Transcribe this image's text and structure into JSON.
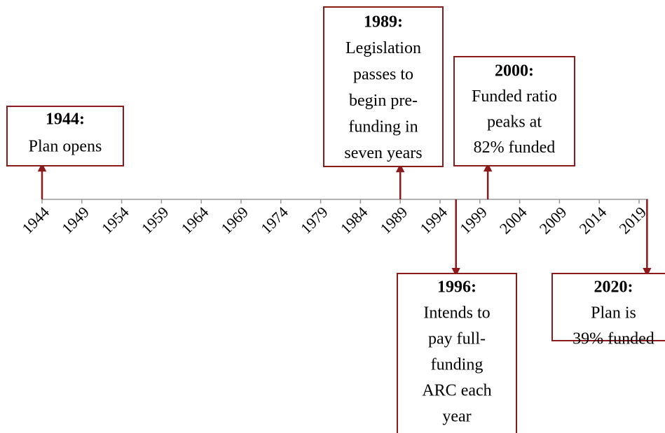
{
  "timeline": {
    "ticks": [
      1944,
      1949,
      1954,
      1959,
      1964,
      1969,
      1974,
      1979,
      1984,
      1989,
      1994,
      1999,
      2004,
      2009,
      2014,
      2019
    ],
    "events": [
      {
        "year": 1944,
        "label": "1944:",
        "lines": [
          "Plan opens"
        ]
      },
      {
        "year": 1989,
        "label": "1989:",
        "lines": [
          "Legislation",
          "passes to",
          "begin pre-",
          "funding in",
          "seven years"
        ]
      },
      {
        "year": 2000,
        "label": "2000:",
        "lines": [
          "Funded ratio",
          "peaks at",
          "82% funded"
        ]
      },
      {
        "year": 1996,
        "label": "1996:",
        "lines": [
          "Intends to",
          "pay full-",
          "funding",
          "ARC each",
          "year"
        ]
      },
      {
        "year": 2020,
        "label": "2020:",
        "lines": [
          "Plan is",
          "39% funded"
        ]
      }
    ]
  }
}
